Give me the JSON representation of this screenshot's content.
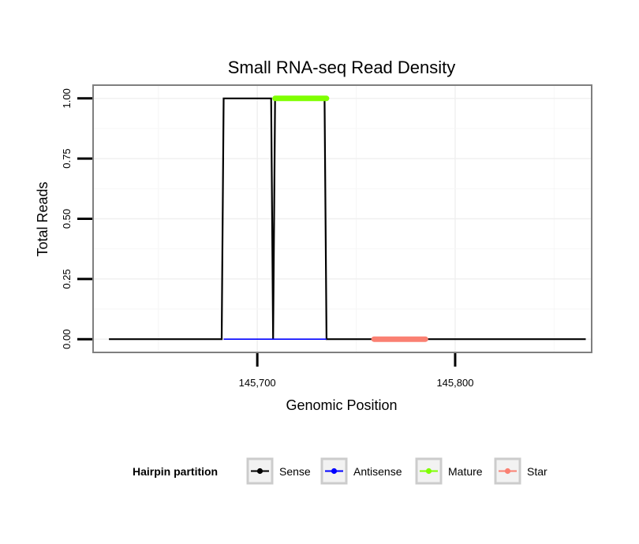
{
  "chart_data": {
    "type": "line",
    "title": "Small RNA-seq Read Density",
    "xlabel": "Genomic Position",
    "ylabel": "Total Reads",
    "xlim": [
      145617,
      145869
    ],
    "ylim": [
      -0.055,
      1.055
    ],
    "x_ticks": [
      145700,
      145800
    ],
    "x_tick_labels": [
      "145,700",
      "145,800"
    ],
    "y_ticks": [
      0,
      0.25,
      0.5,
      0.75,
      1
    ],
    "y_tick_labels": [
      "0.00",
      "0.25",
      "0.50",
      "0.75",
      "1.00"
    ],
    "grid": true,
    "legend": {
      "title": "Hairpin partition",
      "position": "bottom",
      "entries": [
        {
          "name": "Sense",
          "color": "#000000"
        },
        {
          "name": "Antisense",
          "color": "#0000ff"
        },
        {
          "name": "Mature",
          "color": "#7fff00"
        },
        {
          "name": "Star",
          "color": "#fa8072"
        }
      ]
    },
    "series": [
      {
        "name": "Sense",
        "color": "#000000",
        "width": 2.2,
        "x": [
          145625,
          145682,
          145683,
          145707,
          145708,
          145709,
          145734,
          145735,
          145866
        ],
        "y": [
          0,
          0,
          1,
          1,
          0,
          1,
          1,
          0,
          0
        ]
      },
      {
        "name": "Antisense",
        "color": "#0000ff",
        "width": 1.6,
        "x": [
          145683,
          145735
        ],
        "y": [
          0,
          0
        ]
      },
      {
        "name": "Mature",
        "color": "#7fff00",
        "width": 7,
        "x": [
          145709,
          145735
        ],
        "y": [
          1,
          1
        ]
      },
      {
        "name": "Star",
        "color": "#fa8072",
        "width": 7,
        "x": [
          145759,
          145785
        ],
        "y": [
          0,
          0
        ]
      }
    ]
  }
}
